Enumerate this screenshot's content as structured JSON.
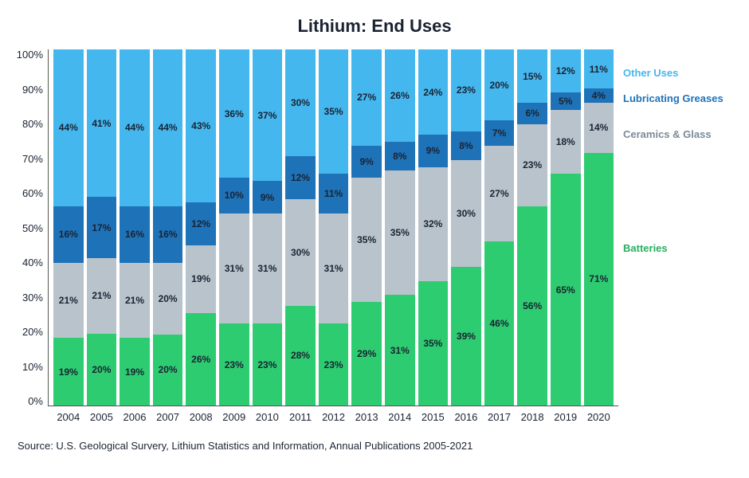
{
  "title": "Lithium: End Uses",
  "title_fontsize": 22,
  "source": "Source: U.S. Geological Survery, Lithium Statistics and Information, Annual Publications 2005-2021",
  "chart": {
    "type": "stacked-bar-100",
    "ylim": [
      0,
      100
    ],
    "ytick_step": 10,
    "yticks": [
      "0%",
      "10%",
      "20%",
      "30%",
      "40%",
      "50%",
      "60%",
      "70%",
      "80%",
      "90%",
      "100%"
    ],
    "categories": [
      "2004",
      "2005",
      "2006",
      "2007",
      "2008",
      "2009",
      "2010",
      "2011",
      "2012",
      "2013",
      "2014",
      "2015",
      "2016",
      "2017",
      "2018",
      "2019",
      "2020"
    ],
    "series": [
      {
        "key": "batteries",
        "label": "Batteries",
        "color": "#2ecc71",
        "legend_color": "#27ae60",
        "values": [
          19,
          20,
          19,
          20,
          26,
          23,
          23,
          28,
          23,
          29,
          31,
          35,
          39,
          46,
          56,
          65,
          71
        ]
      },
      {
        "key": "ceramics",
        "label": "Ceramics & Glass",
        "color": "#b9c3cc",
        "legend_color": "#7a8a99",
        "values": [
          21,
          21,
          21,
          20,
          19,
          31,
          31,
          30,
          31,
          35,
          35,
          32,
          30,
          27,
          23,
          18,
          14
        ]
      },
      {
        "key": "greases",
        "label": "Lubricating Greases",
        "color": "#1e72b8",
        "legend_color": "#1e72b8",
        "values": [
          16,
          17,
          16,
          16,
          12,
          10,
          9,
          12,
          11,
          9,
          8,
          9,
          8,
          7,
          6,
          5,
          4
        ]
      },
      {
        "key": "other",
        "label": "Other Uses",
        "color": "#45b7ef",
        "legend_color": "#45b7ef",
        "values": [
          44,
          41,
          44,
          44,
          43,
          36,
          37,
          30,
          35,
          27,
          26,
          24,
          23,
          20,
          15,
          12,
          11
        ]
      }
    ],
    "legend_positions_pct_from_top": {
      "other": 5,
      "greases": 12,
      "ceramics": 22,
      "batteries": 54
    },
    "background_color": "#ffffff",
    "axis_color": "#555555",
    "label_fontsize": 13,
    "value_fontsize": 12
  }
}
